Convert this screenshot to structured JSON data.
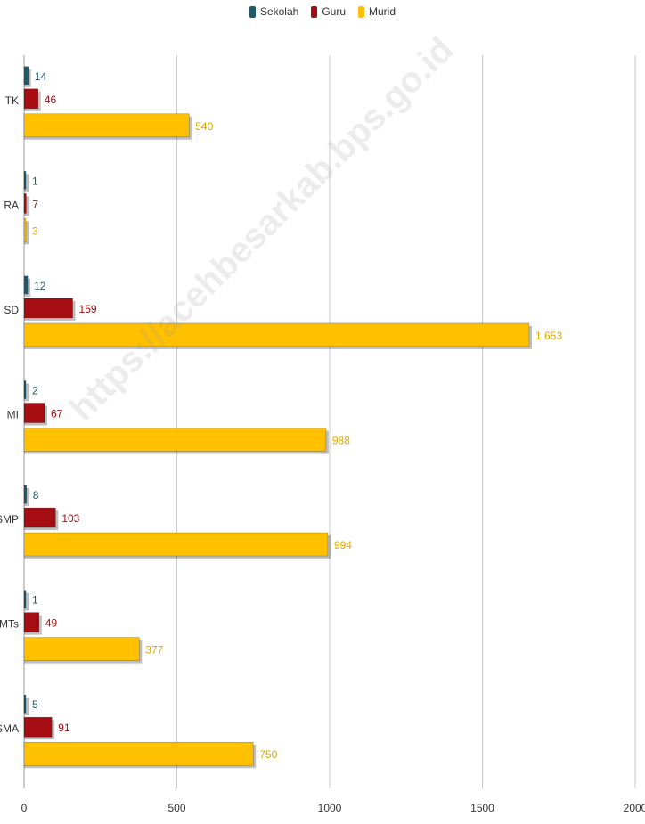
{
  "chart_data": {
    "type": "bar",
    "orientation": "horizontal",
    "categories": [
      "TK",
      "RA",
      "SD",
      "MI",
      "SMP",
      "MTs",
      "SMA"
    ],
    "series": [
      {
        "name": "Sekolah",
        "color": "#1f5a6b",
        "values": [
          14,
          1,
          12,
          2,
          8,
          1,
          5
        ],
        "labels": [
          "14",
          "1",
          "12",
          "2",
          "8",
          "1",
          "5"
        ]
      },
      {
        "name": "Guru",
        "color": "#a50d12",
        "values": [
          46,
          7,
          159,
          67,
          103,
          49,
          91
        ],
        "labels": [
          "46",
          "7",
          "159",
          "67",
          "103",
          "49",
          "91"
        ]
      },
      {
        "name": "Murid",
        "color": "#ffc000",
        "values": [
          540,
          3,
          1653,
          988,
          994,
          377,
          750
        ],
        "labels": [
          "540",
          "3",
          "1 653",
          "988",
          "994",
          "377",
          "750"
        ]
      }
    ],
    "xlim": [
      0,
      2000
    ],
    "xticks": [
      "0",
      "500",
      "1000",
      "1500",
      "2000"
    ],
    "grid": true,
    "legend_position": "top-center",
    "title": "",
    "xlabel": "",
    "ylabel": ""
  },
  "watermark": "https://acehbesarkab.bps.go.id"
}
